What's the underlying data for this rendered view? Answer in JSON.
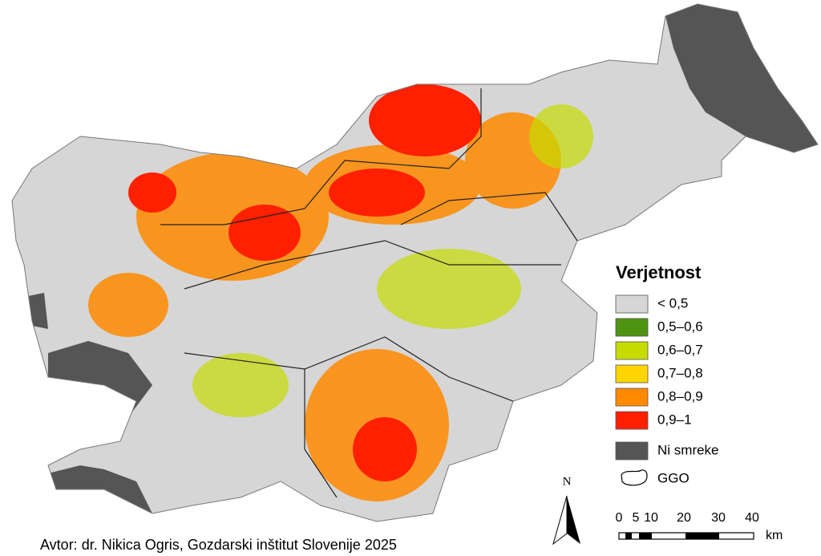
{
  "legend": {
    "title": "Verjetnost",
    "items": [
      {
        "label": "< 0,5",
        "color": "#d6d6d6"
      },
      {
        "label": "0,5–0,6",
        "color": "#4f9410"
      },
      {
        "label": "0,6–0,7",
        "color": "#c6dc00"
      },
      {
        "label": "0,7–0,8",
        "color": "#ffd500"
      },
      {
        "label": "0,8–0,9",
        "color": "#ff8a00"
      },
      {
        "label": "0,9–1",
        "color": "#ff2000"
      },
      {
        "label": "Ni smreke",
        "color": "#555555"
      }
    ],
    "outline_label": "GGO"
  },
  "north_arrow": {
    "label": "N"
  },
  "scale_bar": {
    "labels": [
      "0",
      "5",
      "10",
      "20",
      "30",
      "40"
    ],
    "unit": "km"
  },
  "credit": "Avtor: dr. Nikica Ogris, Gozdarski inštitut Slovenije 2025"
}
